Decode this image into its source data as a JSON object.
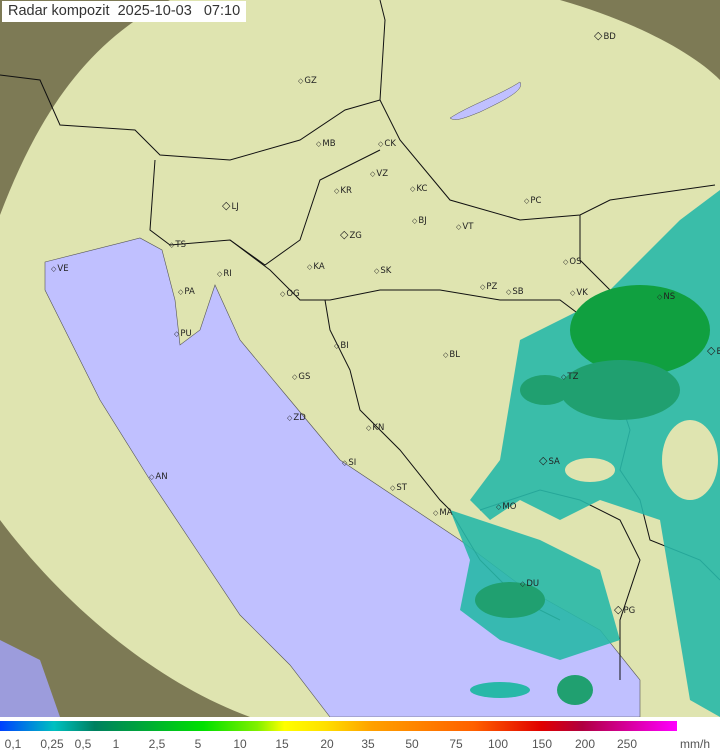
{
  "title": "Radar kompozit  2025-10-03   07:10",
  "legend": {
    "unit": "mm/h",
    "ticks": [
      "0,1",
      "0,25",
      "0,5",
      "1",
      "2,5",
      "5",
      "10",
      "15",
      "20",
      "35",
      "50",
      "75",
      "100",
      "150",
      "200",
      "250"
    ]
  },
  "cities": [
    "BD",
    "GZ",
    "MB",
    "CK",
    "VZ",
    "KR",
    "KC",
    "LJ",
    "PC",
    "BJ",
    "VT",
    "ZG",
    "TS",
    "VE",
    "KA",
    "SK",
    "RI",
    "OS",
    "PA",
    "OG",
    "PZ",
    "SB",
    "VK",
    "NS",
    "PU",
    "BI",
    "BL",
    "BG",
    "TZ",
    "GS",
    "ZD",
    "KN",
    "SA",
    "SI",
    "AN",
    "ST",
    "MA",
    "MO",
    "DU",
    "PG"
  ],
  "colors": {
    "sea": "#c0c0ff",
    "land": "#dfe6b4",
    "outside": "#8a8a5c",
    "precip_light": "#28b8a8",
    "precip_mid": "#20a070",
    "precip_heavy": "#10a040"
  }
}
